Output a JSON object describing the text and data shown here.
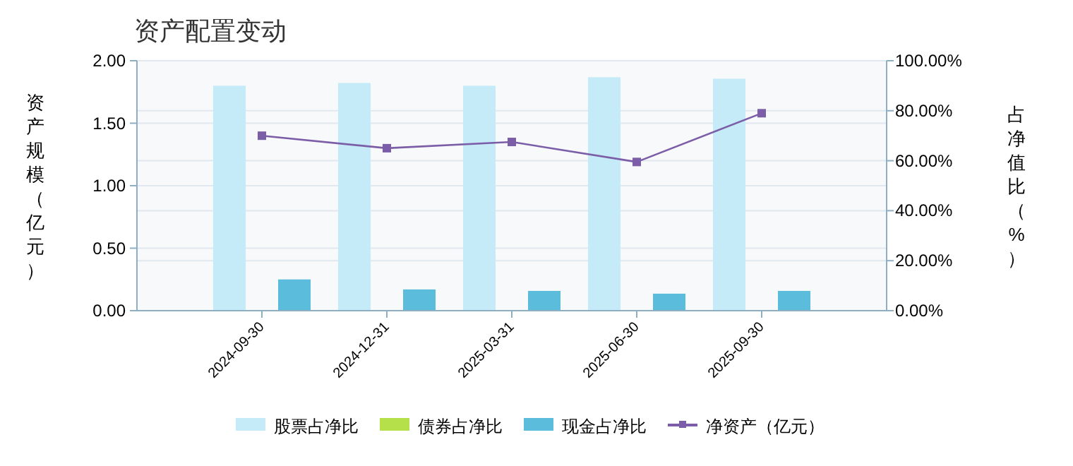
{
  "chart_data": {
    "type": "bar",
    "title": "资产配置变动",
    "ylabel": "资产规模（亿元）",
    "y2label": "占净值比（%）",
    "categories": [
      "2024-09-30",
      "2024-12-31",
      "2025-03-31",
      "2025-06-30",
      "2025-09-30"
    ],
    "series": [
      {
        "name": "股票占净比",
        "axis": "y2",
        "color": "#c4ebf7",
        "values": [
          90.0,
          91.1,
          90.0,
          93.4,
          92.8
        ]
      },
      {
        "name": "债券占净比",
        "axis": "y2",
        "color": "#b5e04a",
        "values": [
          null,
          null,
          null,
          null,
          null
        ]
      },
      {
        "name": "现金占净比",
        "axis": "y2",
        "color": "#5bbcdc",
        "values": [
          12.5,
          8.5,
          7.9,
          6.8,
          7.9
        ]
      },
      {
        "name": "净资产（亿元）",
        "type": "line",
        "axis": "y",
        "color": "#7b5ea7",
        "marker": "square",
        "values": [
          1.4,
          1.3,
          1.35,
          1.19,
          1.58
        ]
      }
    ],
    "ylim": [
      0,
      2
    ],
    "yticks": [
      {
        "value": 0,
        "label": "0.00"
      },
      {
        "value": 0.5,
        "label": "0.50"
      },
      {
        "value": 1,
        "label": "1.00"
      },
      {
        "value": 1.5,
        "label": "1.50"
      },
      {
        "value": 2,
        "label": "2.00"
      }
    ],
    "y2lim": [
      0,
      100
    ],
    "y2ticks": [
      {
        "value": 0,
        "label": "0.00%"
      },
      {
        "value": 20,
        "label": "20.00%"
      },
      {
        "value": 40,
        "label": "40.00%"
      },
      {
        "value": 60,
        "label": "60.00%"
      },
      {
        "value": 80,
        "label": "80.00%"
      },
      {
        "value": 100,
        "label": "100.00%"
      }
    ],
    "grid": "y",
    "legend": "bottom"
  }
}
